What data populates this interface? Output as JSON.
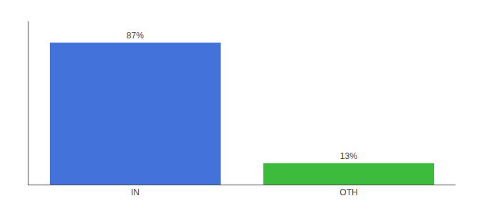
{
  "chart_data": {
    "type": "bar",
    "categories": [
      "IN",
      "OTH"
    ],
    "values": [
      87,
      13
    ],
    "value_labels": [
      "87%",
      "13%"
    ],
    "colors": [
      "#4472DB",
      "#3DBB3D"
    ],
    "ylim": [
      0,
      100
    ],
    "data_labels": true,
    "tick_labels": "x",
    "grid": false
  }
}
